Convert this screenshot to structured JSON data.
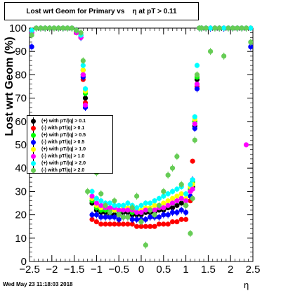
{
  "title": "Lost wrt Geom for Primary vs    η at pT > 0.11",
  "footer": "Wed May 23 11:18:03 2018",
  "chart_data": {
    "type": "scatter",
    "title": "Lost wrt Geom for Primary vs    η at pT > 0.11",
    "xlabel": "η",
    "ylabel": "Lost wrt Geom (%)",
    "xlim": [
      -2.5,
      2.5
    ],
    "ylim": [
      0,
      100
    ],
    "xticks": [
      -2.5,
      -2,
      -1.5,
      -1,
      -0.5,
      0,
      0.5,
      1,
      1.5,
      2,
      2.5
    ],
    "xtick_labels": [
      "−2.5",
      "−2",
      "−1.5",
      "−1",
      "−0.5",
      "0",
      "0.5",
      "1",
      "1.5",
      "2",
      "2.5"
    ],
    "yticks": [
      0,
      10,
      20,
      30,
      40,
      50,
      60,
      70,
      80,
      90,
      100
    ],
    "legend_position": "left-middle",
    "series": [
      {
        "name": "(+) with pT/|q| > 0.1",
        "color": "#000000",
        "x": [
          -2.45,
          -2.35,
          -2.25,
          -2.15,
          -2.05,
          -1.95,
          -1.85,
          -1.75,
          -1.65,
          -1.55,
          -1.45,
          -1.35,
          -1.3,
          -1.25,
          -1.2,
          -1.1,
          -1.0,
          -0.9,
          -0.8,
          -0.7,
          -0.6,
          -0.5,
          -0.4,
          -0.3,
          -0.2,
          -0.1,
          0.0,
          0.1,
          0.2,
          0.3,
          0.4,
          0.5,
          0.6,
          0.7,
          0.8,
          0.9,
          1.0,
          1.1,
          1.15,
          1.2,
          1.25,
          1.3,
          1.35,
          1.45,
          1.55,
          1.65,
          1.75,
          1.85,
          1.95,
          2.05,
          2.15,
          2.25,
          2.35,
          2.45
        ],
        "y": [
          99,
          100,
          100,
          100,
          100,
          100,
          100,
          100,
          100,
          100,
          99,
          97,
          80,
          70,
          55,
          25,
          22,
          21,
          21,
          20,
          20,
          20,
          21,
          21,
          20,
          20,
          20,
          21,
          21,
          21,
          22,
          22,
          23,
          23,
          24,
          25,
          24,
          30,
          32,
          58,
          78,
          100,
          100,
          100,
          100,
          100,
          100,
          100,
          100,
          100,
          100,
          100,
          100,
          100
        ]
      },
      {
        "name": "(-) with pT/|q| > 0.1",
        "color": "#ff0000",
        "x": [
          -2.45,
          -2.35,
          -2.25,
          -2.15,
          -2.05,
          -1.95,
          -1.85,
          -1.75,
          -1.65,
          -1.55,
          -1.45,
          -1.35,
          -1.3,
          -1.25,
          -1.2,
          -1.1,
          -1.0,
          -0.9,
          -0.8,
          -0.7,
          -0.6,
          -0.5,
          -0.4,
          -0.3,
          -0.2,
          -0.1,
          0.0,
          0.1,
          0.2,
          0.3,
          0.4,
          0.5,
          0.6,
          0.7,
          0.8,
          0.9,
          1.0,
          1.1,
          1.15,
          1.2,
          1.25,
          1.3,
          1.35,
          1.45,
          1.55,
          1.65,
          1.75,
          1.85,
          1.95,
          2.05,
          2.15,
          2.25,
          2.35,
          2.45
        ],
        "y": [
          98,
          100,
          100,
          100,
          100,
          100,
          100,
          100,
          100,
          100,
          98,
          96,
          78,
          68,
          52,
          18,
          17,
          16,
          16,
          16,
          16,
          16,
          16,
          16,
          16,
          15,
          15,
          15,
          15,
          15,
          16,
          16,
          16,
          17,
          17,
          18,
          18,
          26,
          43,
          60,
          75,
          100,
          100,
          100,
          100,
          100,
          100,
          100,
          100,
          100,
          100,
          100,
          100,
          100
        ]
      },
      {
        "name": "(+) with pT/|q| > 0.5",
        "color": "#00ff00",
        "x": [
          -2.45,
          -2.35,
          -2.25,
          -2.15,
          -2.05,
          -1.95,
          -1.85,
          -1.75,
          -1.65,
          -1.55,
          -1.45,
          -1.35,
          -1.3,
          -1.25,
          -1.2,
          -1.1,
          -1.0,
          -0.9,
          -0.8,
          -0.7,
          -0.6,
          -0.5,
          -0.4,
          -0.3,
          -0.2,
          -0.1,
          0.0,
          0.1,
          0.2,
          0.3,
          0.4,
          0.5,
          0.6,
          0.7,
          0.8,
          0.9,
          1.0,
          1.1,
          1.15,
          1.2,
          1.25,
          1.3,
          1.35,
          1.45,
          1.55,
          1.65,
          1.75,
          1.85,
          1.95,
          2.05,
          2.15,
          2.25,
          2.35,
          2.45
        ],
        "y": [
          99,
          100,
          100,
          100,
          100,
          100,
          100,
          100,
          100,
          100,
          99,
          97,
          82,
          72,
          57,
          26,
          23,
          22,
          22,
          22,
          22,
          21,
          22,
          22,
          21,
          21,
          21,
          22,
          22,
          22,
          23,
          23,
          24,
          25,
          26,
          27,
          26,
          31,
          34,
          60,
          79,
          100,
          100,
          100,
          100,
          100,
          100,
          100,
          100,
          100,
          100,
          100,
          100,
          100
        ]
      },
      {
        "name": "(-) with pT/|q| > 0.5",
        "color": "#0000ff",
        "x": [
          -2.45,
          -2.35,
          -2.25,
          -2.15,
          -2.05,
          -1.95,
          -1.85,
          -1.75,
          -1.65,
          -1.55,
          -1.45,
          -1.35,
          -1.3,
          -1.25,
          -1.2,
          -1.1,
          -1.0,
          -0.9,
          -0.8,
          -0.7,
          -0.6,
          -0.5,
          -0.4,
          -0.3,
          -0.2,
          -0.1,
          0.0,
          0.1,
          0.2,
          0.3,
          0.4,
          0.5,
          0.6,
          0.7,
          0.8,
          0.9,
          1.0,
          1.1,
          1.15,
          1.2,
          1.25,
          1.3,
          1.35,
          1.45,
          1.55,
          1.65,
          1.75,
          1.85,
          1.95,
          2.05,
          2.15,
          2.25,
          2.35,
          2.45
        ],
        "y": [
          92,
          100,
          100,
          100,
          100,
          100,
          100,
          100,
          100,
          100,
          99,
          96,
          79,
          66,
          54,
          20,
          20,
          19,
          19,
          19,
          19,
          18,
          19,
          19,
          18,
          18,
          18,
          18,
          19,
          19,
          19,
          20,
          20,
          21,
          21,
          22,
          21,
          28,
          35,
          57,
          74,
          100,
          100,
          100,
          100,
          100,
          100,
          100,
          100,
          100,
          100,
          100,
          100,
          92
        ]
      },
      {
        "name": "(+) with pT/|q| > 1.0",
        "color": "#ffff00",
        "x": [
          -2.45,
          -2.35,
          -2.25,
          -2.15,
          -2.05,
          -1.95,
          -1.85,
          -1.75,
          -1.65,
          -1.55,
          -1.45,
          -1.35,
          -1.3,
          -1.25,
          -1.2,
          -1.1,
          -1.0,
          -0.9,
          -0.8,
          -0.7,
          -0.6,
          -0.5,
          -0.4,
          -0.3,
          -0.2,
          -0.1,
          0.0,
          0.1,
          0.2,
          0.3,
          0.4,
          0.5,
          0.6,
          0.7,
          0.8,
          0.9,
          1.0,
          1.1,
          1.15,
          1.2,
          1.25,
          1.3,
          1.35,
          1.45,
          1.55,
          1.65,
          1.75,
          1.85,
          1.95,
          2.05,
          2.15,
          2.25,
          2.35,
          2.45
        ],
        "y": [
          99,
          100,
          100,
          100,
          100,
          100,
          100,
          100,
          100,
          100,
          99,
          97,
          82,
          73,
          58,
          27,
          24,
          23,
          23,
          23,
          22,
          22,
          23,
          23,
          22,
          22,
          22,
          23,
          23,
          24,
          24,
          25,
          26,
          27,
          28,
          29,
          27,
          32,
          33,
          61,
          80,
          100,
          100,
          100,
          100,
          100,
          100,
          100,
          100,
          100,
          100,
          100,
          100,
          100
        ]
      },
      {
        "name": "(-) with pT/|q| > 1.0",
        "color": "#ff00ff",
        "x": [
          -2.45,
          -2.35,
          -2.25,
          -2.15,
          -2.05,
          -1.95,
          -1.85,
          -1.75,
          -1.65,
          -1.55,
          -1.45,
          -1.35,
          -1.3,
          -1.25,
          -1.2,
          -1.1,
          -1.0,
          -0.9,
          -0.8,
          -0.7,
          -0.6,
          -0.5,
          -0.4,
          -0.3,
          -0.2,
          -0.1,
          0.0,
          0.1,
          0.2,
          0.3,
          0.4,
          0.5,
          0.6,
          0.7,
          0.8,
          0.9,
          1.0,
          1.1,
          1.15,
          1.2,
          1.25,
          1.3,
          1.35,
          1.45,
          1.55,
          1.65,
          1.75,
          1.85,
          1.95,
          2.05,
          2.15,
          2.25,
          2.35,
          2.45
        ],
        "y": [
          98,
          100,
          100,
          100,
          100,
          100,
          100,
          100,
          100,
          100,
          98,
          96,
          80,
          67,
          55,
          28,
          25,
          24,
          23,
          23,
          23,
          22,
          22,
          22,
          22,
          21,
          21,
          22,
          22,
          22,
          23,
          23,
          24,
          25,
          26,
          27,
          26,
          30,
          31,
          59,
          76,
          100,
          100,
          100,
          100,
          100,
          100,
          100,
          100,
          100,
          100,
          100,
          50,
          100
        ]
      },
      {
        "name": "(+) with pT/|q| > 2.0",
        "color": "#00ffff",
        "x": [
          -2.45,
          -2.35,
          -2.25,
          -2.15,
          -2.05,
          -1.95,
          -1.85,
          -1.75,
          -1.65,
          -1.55,
          -1.45,
          -1.35,
          -1.3,
          -1.25,
          -1.2,
          -1.1,
          -1.0,
          -0.9,
          -0.8,
          -0.7,
          -0.6,
          -0.5,
          -0.4,
          -0.3,
          -0.2,
          -0.1,
          0.0,
          0.1,
          0.2,
          0.3,
          0.4,
          0.5,
          0.6,
          0.7,
          0.8,
          0.9,
          1.0,
          1.1,
          1.15,
          1.2,
          1.25,
          1.3,
          1.35,
          1.45,
          1.55,
          1.65,
          1.75,
          1.85,
          1.95,
          2.05,
          2.15,
          2.25,
          2.35,
          2.45
        ],
        "y": [
          99,
          100,
          100,
          100,
          100,
          100,
          100,
          100,
          100,
          100,
          99,
          97,
          84,
          74,
          60,
          30,
          27,
          26,
          25,
          25,
          24,
          24,
          24,
          25,
          24,
          23,
          24,
          25,
          25,
          26,
          27,
          28,
          29,
          30,
          31,
          32,
          29,
          33,
          35,
          62,
          84,
          100,
          100,
          100,
          100,
          100,
          100,
          100,
          100,
          100,
          100,
          100,
          100,
          100
        ]
      },
      {
        "name": "(-) with pT/|q| > 2.0",
        "color": "#66cc55",
        "x": [
          -2.45,
          -2.35,
          -2.25,
          -2.15,
          -2.05,
          -1.95,
          -1.85,
          -1.75,
          -1.65,
          -1.55,
          -1.45,
          -1.35,
          -1.3,
          -1.25,
          -1.2,
          -1.1,
          -1.0,
          -0.9,
          -0.8,
          -0.7,
          -0.6,
          -0.5,
          -0.4,
          -0.3,
          -0.2,
          -0.1,
          0.0,
          0.1,
          0.2,
          0.3,
          0.4,
          0.5,
          0.6,
          0.7,
          0.8,
          0.9,
          1.0,
          1.1,
          1.15,
          1.2,
          1.25,
          1.3,
          1.35,
          1.45,
          1.55,
          1.65,
          1.75,
          1.85,
          1.95,
          2.05,
          2.15,
          2.25,
          2.35,
          2.45
        ],
        "y": [
          97,
          100,
          100,
          100,
          100,
          100,
          100,
          100,
          100,
          100,
          99,
          98,
          86,
          60,
          30,
          40,
          38,
          29,
          24,
          21,
          26,
          20,
          19,
          19,
          23,
          28,
          17,
          7,
          22,
          20,
          24,
          30,
          37,
          40,
          45,
          33,
          24,
          12,
          27,
          52,
          80,
          100,
          100,
          100,
          90,
          100,
          100,
          88,
          100,
          100,
          100,
          100,
          100,
          94
        ]
      }
    ]
  }
}
